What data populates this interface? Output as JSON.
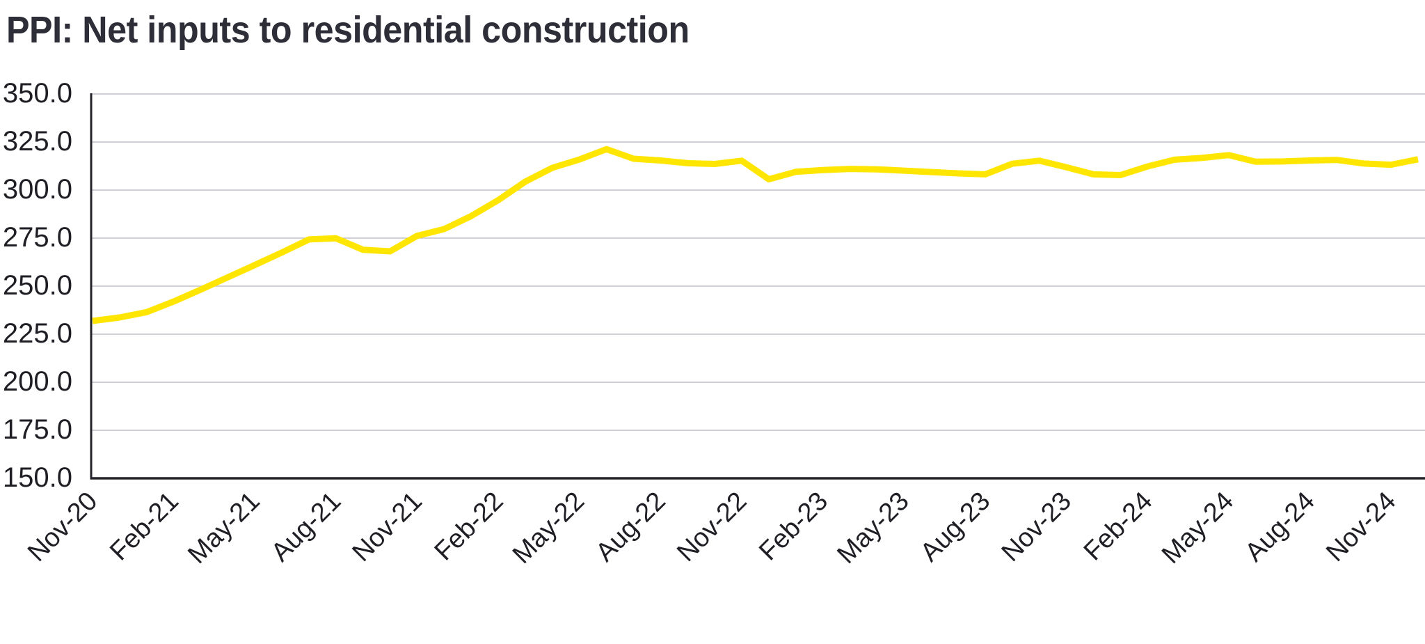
{
  "title": "PPI: Net inputs to residential construction",
  "colors": {
    "line": "#FFE600",
    "title": "#2E2E38",
    "tick_text": "#1E1E24",
    "axis": "#23232A",
    "gridline": "#BFC0C8",
    "background": "#FFFFFF"
  },
  "chart_data": {
    "type": "line",
    "title": "PPI: Net inputs to residential construction",
    "series_name": "PPI net inputs to residential construction (index)",
    "x": [
      "Nov-20",
      "Dec-20",
      "Jan-21",
      "Feb-21",
      "Mar-21",
      "Apr-21",
      "May-21",
      "Jun-21",
      "Jul-21",
      "Aug-21",
      "Sep-21",
      "Oct-21",
      "Nov-21",
      "Dec-21",
      "Jan-22",
      "Feb-22",
      "Mar-22",
      "Apr-22",
      "May-22",
      "Jun-22",
      "Jul-22",
      "Aug-22",
      "Sep-22",
      "Oct-22",
      "Nov-22",
      "Dec-22",
      "Jan-23",
      "Feb-23",
      "Mar-23",
      "Apr-23",
      "May-23",
      "Jun-23",
      "Jul-23",
      "Aug-23",
      "Sep-23",
      "Oct-23",
      "Nov-23",
      "Dec-23",
      "Jan-24",
      "Feb-24",
      "Mar-24",
      "Apr-24",
      "May-24",
      "Jun-24",
      "Jul-24",
      "Aug-24",
      "Sep-24",
      "Oct-24",
      "Nov-24",
      "Dec-24"
    ],
    "values": [
      231.9,
      233.7,
      236.5,
      242.0,
      248.2,
      254.6,
      261.0,
      267.5,
      274.3,
      274.9,
      268.9,
      268.1,
      276.2,
      279.7,
      286.5,
      294.8,
      304.4,
      311.6,
      315.9,
      321.3,
      316.3,
      315.4,
      314.0,
      313.6,
      315.3,
      305.6,
      309.5,
      310.4,
      311.0,
      310.8,
      310.1,
      309.4,
      308.7,
      308.2,
      313.7,
      315.3,
      311.9,
      308.2,
      307.8,
      312.3,
      315.8,
      316.7,
      318.2,
      314.8,
      314.9,
      315.4,
      315.7,
      313.8,
      313.2,
      316.0
    ],
    "x_tick_labels": [
      "Nov-20",
      "Feb-21",
      "May-21",
      "Aug-21",
      "Nov-21",
      "Feb-22",
      "May-22",
      "Aug-22",
      "Nov-22",
      "Feb-23",
      "May-23",
      "Aug-23",
      "Nov-23",
      "Feb-24",
      "May-24",
      "Aug-24",
      "Nov-24"
    ],
    "x_tick_every": 3,
    "yticks": [
      150,
      175,
      200,
      225,
      250,
      275,
      300,
      325,
      350
    ],
    "ylim": [
      150,
      350
    ],
    "ytick_decimals": 1,
    "grid": "horizontal",
    "legend": "none"
  }
}
